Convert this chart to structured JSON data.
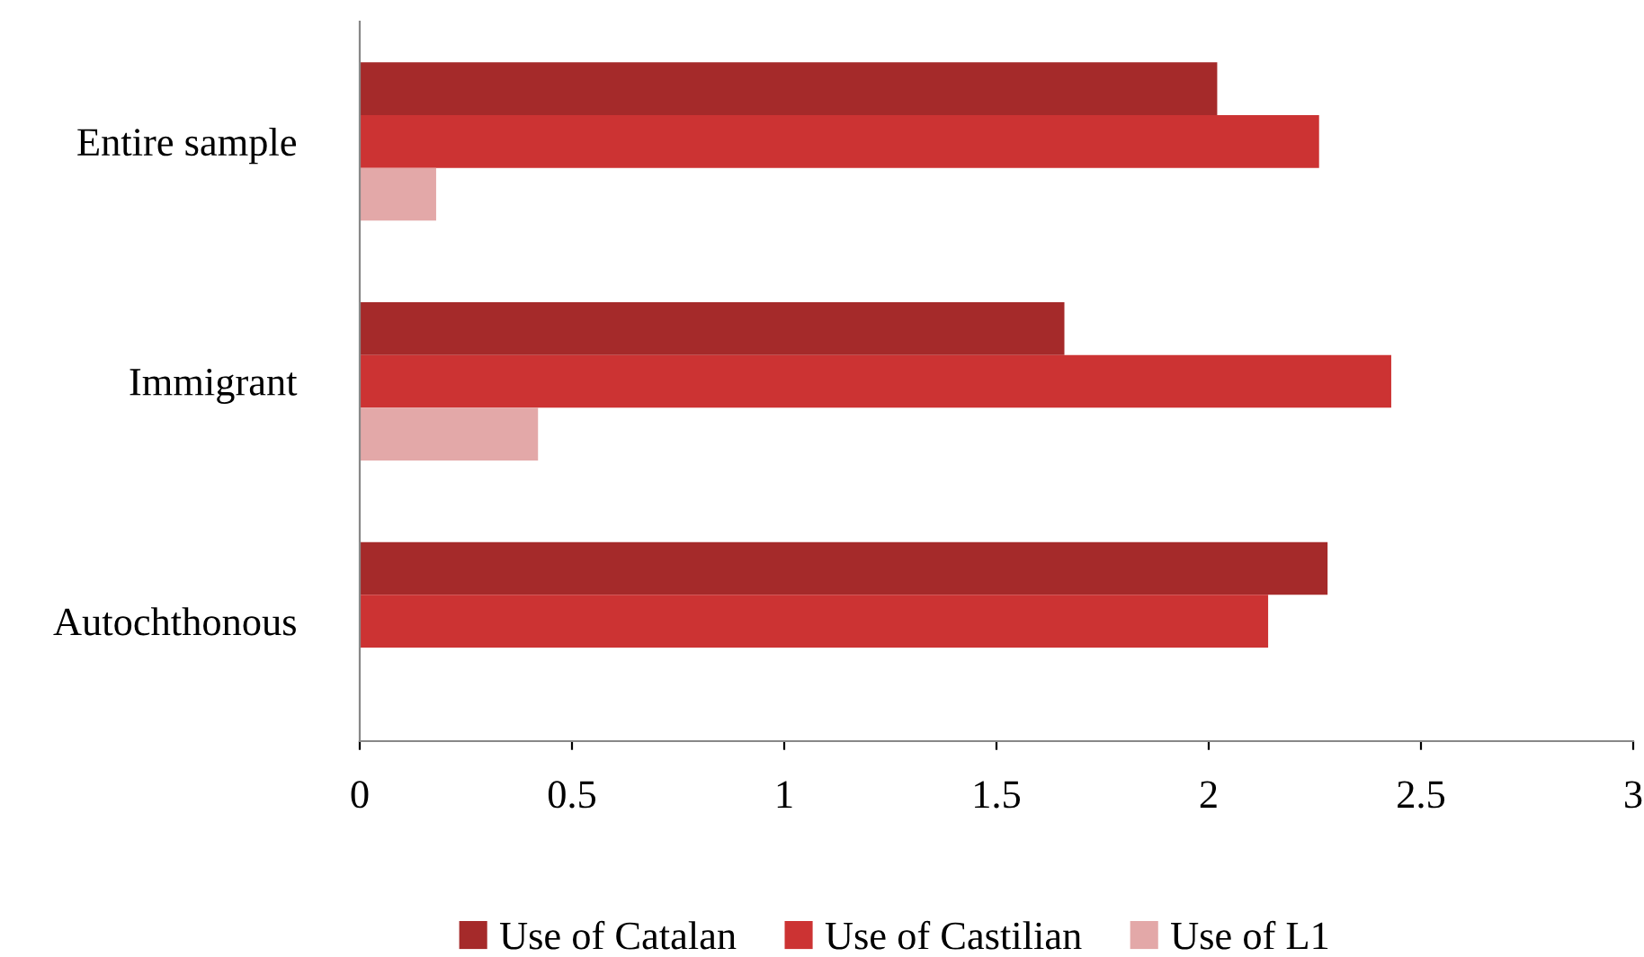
{
  "chart_data": {
    "type": "bar",
    "orientation": "horizontal",
    "categories": [
      "Entire sample",
      "Immigrant",
      "Autochthonous"
    ],
    "series": [
      {
        "name": "Use of Catalan",
        "color": "#a52a2a",
        "values": [
          2.02,
          1.66,
          2.28
        ]
      },
      {
        "name": "Use of Castilian",
        "color": "#cc3333",
        "values": [
          2.26,
          2.43,
          2.14
        ]
      },
      {
        "name": "Use of L1",
        "color": "#e3a8a8",
        "values": [
          0.18,
          0.42,
          null
        ]
      }
    ],
    "xlim": [
      0,
      3
    ],
    "xticks": [
      0,
      0.5,
      1,
      1.5,
      2,
      2.5,
      3
    ],
    "grid": false,
    "legend": "bottom"
  }
}
